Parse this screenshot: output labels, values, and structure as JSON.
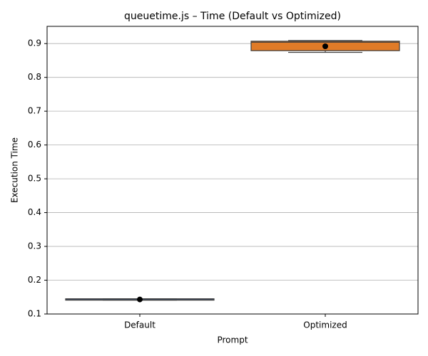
{
  "chart_data": {
    "type": "box",
    "title": "queuetime.js – Time (Default vs Optimized)",
    "x_label": "Prompt",
    "y_label": "Execution Time",
    "categories": [
      "Default",
      "Optimized"
    ],
    "boxes": [
      {
        "whislo": 0.141,
        "q1": 0.141,
        "med": 0.142,
        "q3": 0.145,
        "whishi": 0.145,
        "mean": 0.143,
        "color": "#4c72b0"
      },
      {
        "whislo": 0.874,
        "q1": 0.879,
        "med": 0.904,
        "q3": 0.907,
        "whishi": 0.909,
        "mean": 0.892,
        "color": "#e07b28"
      }
    ],
    "ylim": [
      0.1,
      0.951
    ],
    "yticks": [
      0.1,
      0.2,
      0.3,
      0.4,
      0.5,
      0.6,
      0.7,
      0.8,
      0.9
    ],
    "grid": true
  }
}
